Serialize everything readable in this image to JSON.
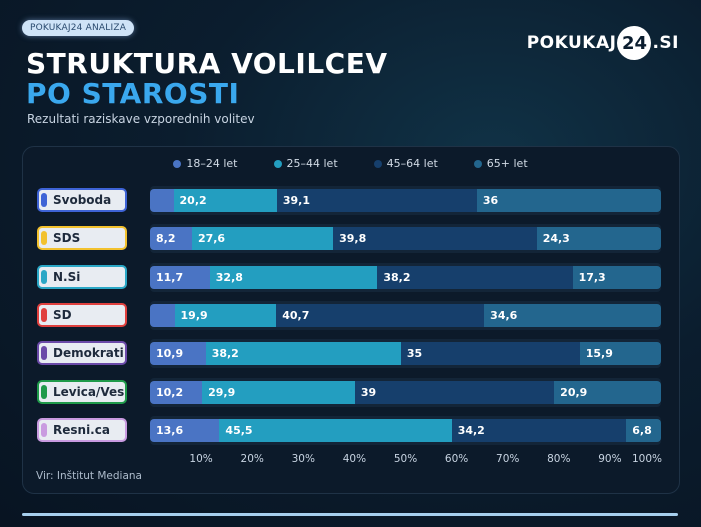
{
  "header": {
    "badge": "POKUKAJ24 ANALIZA",
    "title_line1": "STRUKTURA VOLILCEV",
    "title_line2": "PO STAROSTI",
    "subtitle": "Rezultati raziskave vzporednih volitev",
    "logo_left": "POKUKAJ",
    "logo_circle": "24",
    "logo_right": ".SI"
  },
  "source": "Vir: Inštitut Mediana",
  "colors": {
    "title_accent": "#3aa8ee",
    "series": [
      "#4a74c4",
      "#239ec0",
      "#163f6c",
      "#23668e"
    ]
  },
  "chart_data": {
    "type": "bar",
    "stacked": true,
    "orientation": "horizontal",
    "categories": [
      "Svoboda",
      "SDS",
      "N.Si",
      "SD",
      "Demokrati",
      "Levica/Vesna",
      "Resni.ca"
    ],
    "category_colors": [
      "#3e63d6",
      "#f2c12e",
      "#2aa7c6",
      "#e0403e",
      "#6b4aa8",
      "#1f9a4a",
      "#c99be0"
    ],
    "series": [
      {
        "name": "18–24 let",
        "values": [
          4.6,
          8.2,
          11.7,
          4.8,
          10.9,
          10.2,
          13.6
        ],
        "labels": [
          "",
          "8,2",
          "11,7",
          "",
          "10,9",
          "10,2",
          "13,6"
        ]
      },
      {
        "name": "25–44 let",
        "values": [
          20.2,
          27.6,
          32.8,
          19.9,
          38.2,
          29.9,
          45.5
        ],
        "labels": [
          "20,2",
          "27,6",
          "32,8",
          "19,9",
          "38,2",
          "29,9",
          "45,5"
        ]
      },
      {
        "name": "45–64 let",
        "values": [
          39.1,
          39.8,
          38.2,
          40.7,
          35,
          39,
          34.2
        ],
        "labels": [
          "39,1",
          "39,8",
          "38,2",
          "40,7",
          "35",
          "39",
          "34,2"
        ]
      },
      {
        "name": "65+ let",
        "values": [
          36,
          24.3,
          17.3,
          34.6,
          15.9,
          20.9,
          6.8
        ],
        "labels": [
          "36",
          "24,3",
          "17,3",
          "34,6",
          "15,9",
          "20,9",
          "6,8"
        ]
      }
    ],
    "xticks": [
      "10%",
      "20%",
      "30%",
      "40%",
      "50%",
      "60%",
      "70%",
      "80%",
      "90%",
      "100%"
    ],
    "xlim": [
      0,
      100
    ],
    "legend_position": "top"
  }
}
